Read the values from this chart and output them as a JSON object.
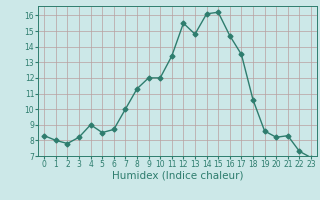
{
  "x": [
    0,
    1,
    2,
    3,
    4,
    5,
    6,
    7,
    8,
    9,
    10,
    11,
    12,
    13,
    14,
    15,
    16,
    17,
    18,
    19,
    20,
    21,
    22,
    23
  ],
  "y": [
    8.3,
    8.0,
    7.8,
    8.2,
    9.0,
    8.5,
    8.7,
    10.0,
    11.3,
    12.0,
    12.0,
    13.4,
    15.5,
    14.8,
    16.1,
    16.2,
    14.7,
    13.5,
    10.6,
    8.6,
    8.2,
    8.3,
    7.3,
    6.9
  ],
  "line_color": "#2e7d6e",
  "marker": "D",
  "marker_size": 2.5,
  "bg_color": "#cce8e8",
  "grid_color": "#b8a0a0",
  "xlabel": "Humidex (Indice chaleur)",
  "xlim": [
    -0.5,
    23.5
  ],
  "ylim": [
    7,
    16.6
  ],
  "yticks": [
    7,
    8,
    9,
    10,
    11,
    12,
    13,
    14,
    15,
    16
  ],
  "xticks": [
    0,
    1,
    2,
    3,
    4,
    5,
    6,
    7,
    8,
    9,
    10,
    11,
    12,
    13,
    14,
    15,
    16,
    17,
    18,
    19,
    20,
    21,
    22,
    23
  ],
  "tick_fontsize": 5.5,
  "xlabel_fontsize": 7.5,
  "line_width": 1.0
}
